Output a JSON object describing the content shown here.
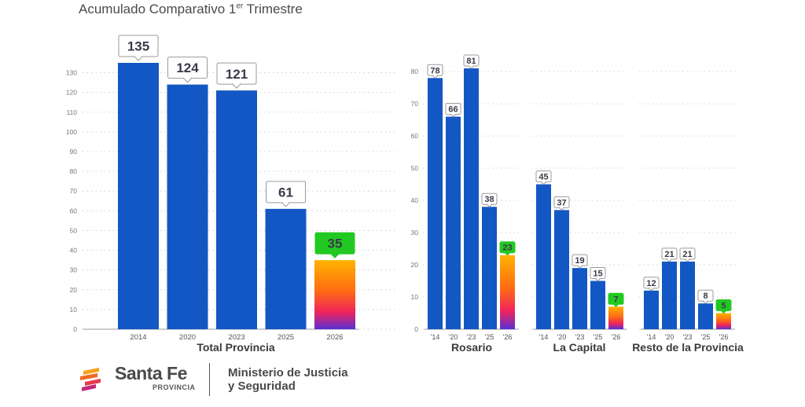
{
  "title_main": "Acumulado Comparativo 1",
  "title_sup": "er",
  "title_tail": " Trimestre",
  "colors": {
    "bar": "#1357c4",
    "highlight_label": "#22c922"
  },
  "chart_data": [
    {
      "type": "bar",
      "title": "Total Provincia",
      "categories": [
        "2014",
        "2020",
        "2023",
        "2025",
        "2026"
      ],
      "values": [
        135,
        124,
        121,
        61,
        35
      ],
      "ylim": [
        0,
        135
      ],
      "yticks": [
        "0",
        "10",
        "20",
        "30",
        "40",
        "50",
        "60",
        "70",
        "80",
        "90",
        "100",
        "110",
        "120",
        "130"
      ],
      "highlight_last": true
    },
    {
      "type": "bar",
      "title": "Rosario",
      "categories": [
        "'14",
        "'20",
        "'23",
        "'25",
        "'26"
      ],
      "values": [
        78,
        66,
        81,
        38,
        23
      ],
      "ylim": [
        0,
        81
      ],
      "yticks": [
        "0",
        "10",
        "20",
        "30",
        "40",
        "50",
        "60",
        "70",
        "80"
      ],
      "highlight_last": true
    },
    {
      "type": "bar",
      "title": "La Capital",
      "categories": [
        "'14",
        "'20",
        "'23",
        "'25",
        "'26"
      ],
      "values": [
        45,
        37,
        19,
        15,
        7
      ],
      "ylim": [
        0,
        81
      ],
      "highlight_last": true
    },
    {
      "type": "bar",
      "title": "Resto de la Provincia",
      "categories": [
        "'14",
        "'20",
        "'23",
        "'25",
        "'26"
      ],
      "values": [
        12,
        21,
        21,
        8,
        5
      ],
      "ylim": [
        0,
        81
      ],
      "highlight_last": true
    }
  ],
  "footer": {
    "brand": "Santa Fe",
    "brand_sub": "PROVINCIA",
    "ministry_line1": "Ministerio de Justicia",
    "ministry_line2": "y Seguridad"
  }
}
